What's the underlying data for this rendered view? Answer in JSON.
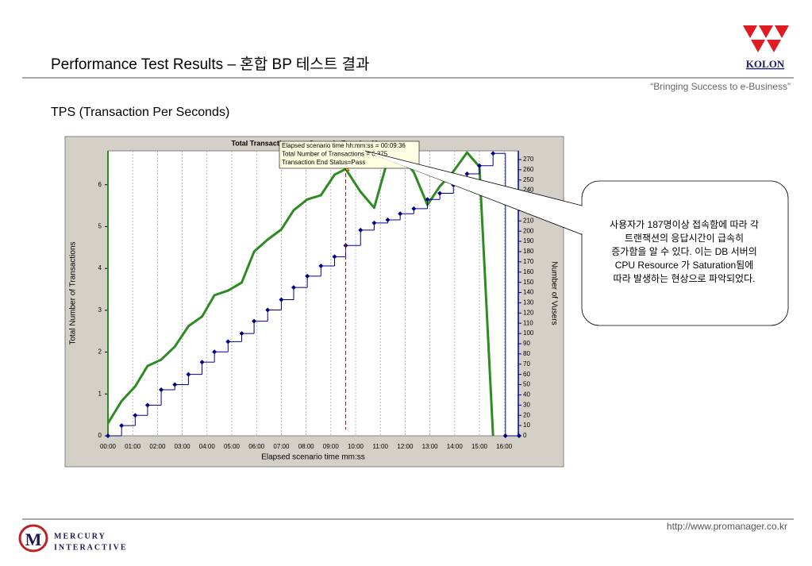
{
  "slide": {
    "title": "Performance Test Results –  혼합 BP 테스트 결과",
    "tagline": "“Bringing Success to e-Business”",
    "logo": "KOLON",
    "subtitle": "TPS (Transaction Per Seconds)",
    "callout": [
      "사용자가 187명이상 접속함에 따라 각",
      "트랜잭션의 응답시간이 급속히",
      "증가함을 알 수 있다. 이는 DB 서버의",
      "CPU Resource 가 Saturation됨에",
      "따라 발생하는 현상으로 파악되었다."
    ],
    "url": "http://www.promanager.co.kr",
    "footer_logo": [
      "MERCURY",
      "INTERACTIVE"
    ]
  },
  "chart_data": {
    "type": "line",
    "title": "Total Transactions per Second - Running Vusers",
    "xlabel": "Elapsed scenario time mm:ss",
    "ylabel": "Total Number of Transactions",
    "y2label": "Number of Vusers",
    "tooltip": [
      "Elapsed scenario time hh:mm:ss = 00:09:36",
      "Total Number of Transactions = 6.375",
      "Transaction End Status=Pass"
    ],
    "marker_x": 9.6,
    "x": [
      0,
      0.55,
      1.1,
      1.6,
      2.15,
      2.7,
      3.25,
      3.8,
      4.3,
      4.85,
      5.4,
      5.9,
      6.45,
      7.0,
      7.5,
      8.05,
      8.6,
      9.15,
      9.6,
      10.2,
      10.75,
      11.3,
      11.8,
      12.35,
      12.9,
      13.4,
      13.95,
      14.5,
      15.0,
      15.55,
      16.05,
      16.6
    ],
    "series": [
      {
        "name": "Total Transactions per Second",
        "color": "#2e8b22",
        "values": [
          0.3,
          0.83,
          1.18,
          1.67,
          1.82,
          2.13,
          2.62,
          2.85,
          3.36,
          3.47,
          3.66,
          4.4,
          4.69,
          4.93,
          5.39,
          5.65,
          5.75,
          6.24,
          6.375,
          5.83,
          5.45,
          6.6,
          6.7,
          6.3,
          5.52,
          5.96,
          6.32,
          6.77,
          6.43,
          0,
          null,
          null
        ]
      },
      {
        "name": "Running Vusers",
        "color": "#00008b",
        "axis": "y2",
        "step": true,
        "values": [
          0,
          10,
          20,
          30,
          45,
          50,
          60,
          72,
          82,
          92,
          100,
          112,
          123,
          133,
          145,
          156,
          166,
          175,
          186,
          201,
          208,
          211,
          217,
          222,
          231,
          237,
          245,
          256,
          264,
          276,
          0,
          0
        ]
      }
    ],
    "xlim": [
      0,
      16.57
    ],
    "xticks": [
      {
        "value": 0,
        "label": "00:00"
      },
      {
        "value": 1,
        "label": "01:00"
      },
      {
        "value": 2,
        "label": "02:00"
      },
      {
        "value": 3,
        "label": "03:00"
      },
      {
        "value": 4,
        "label": "04:00"
      },
      {
        "value": 5,
        "label": "05:00"
      },
      {
        "value": 6,
        "label": "06:00"
      },
      {
        "value": 7,
        "label": "07:00"
      },
      {
        "value": 8,
        "label": "08:00"
      },
      {
        "value": 9,
        "label": "09:00"
      },
      {
        "value": 10,
        "label": "10:00"
      },
      {
        "value": 11,
        "label": "11:00"
      },
      {
        "value": 12,
        "label": "12:00"
      },
      {
        "value": 13,
        "label": "13:00"
      },
      {
        "value": 14,
        "label": "14:00"
      },
      {
        "value": 15,
        "label": "15:00"
      },
      {
        "value": 16,
        "label": "16:00"
      }
    ],
    "ylim": [
      0,
      6.81
    ],
    "yticks": [
      0,
      1,
      2,
      3,
      4,
      5,
      6
    ],
    "y2lim": [
      0,
      278.5
    ],
    "y2ticks": [
      0,
      10,
      20,
      30,
      40,
      50,
      60,
      70,
      80,
      90,
      100,
      110,
      120,
      130,
      140,
      150,
      160,
      170,
      180,
      190,
      200,
      210,
      220,
      230,
      240,
      250,
      260,
      270
    ],
    "grid": true
  }
}
